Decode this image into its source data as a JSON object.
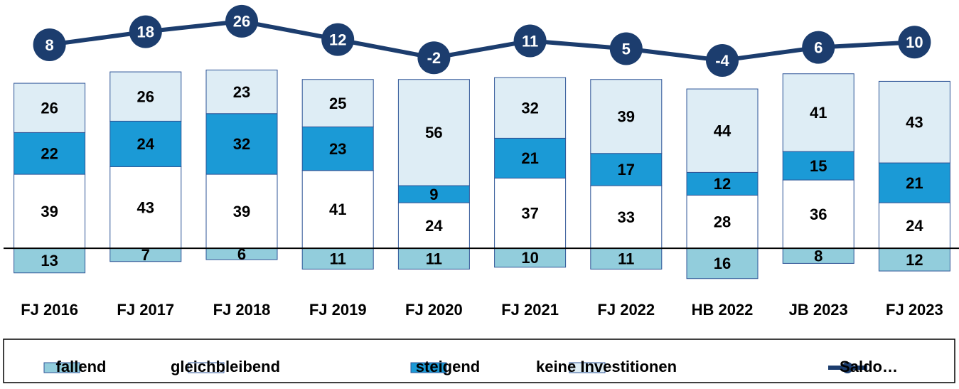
{
  "chart_data": {
    "type": "bar",
    "categories": [
      "FJ 2016",
      "FJ 2017",
      "FJ 2018",
      "FJ 2019",
      "FJ 2020",
      "FJ 2021",
      "FJ 2022",
      "HB 2022",
      "JB 2023",
      "FJ 2023"
    ],
    "series": [
      {
        "name": "fallend",
        "color": "#92cddc",
        "stack": "below",
        "values": [
          13,
          7,
          6,
          11,
          11,
          10,
          11,
          16,
          8,
          12
        ]
      },
      {
        "name": "gleichbleibend",
        "color": "#ffffff",
        "stack": "above",
        "values": [
          39,
          43,
          39,
          41,
          24,
          37,
          33,
          28,
          36,
          24
        ]
      },
      {
        "name": "steigend",
        "color": "#1b9ad6",
        "stack": "above",
        "values": [
          22,
          24,
          32,
          23,
          9,
          21,
          17,
          12,
          15,
          21
        ]
      },
      {
        "name": "keine Investitionen",
        "color": "#deedf5",
        "stack": "above",
        "values": [
          26,
          26,
          23,
          25,
          56,
          32,
          39,
          44,
          41,
          43
        ]
      },
      {
        "name": "Saldo…",
        "color": "#1c3d6e",
        "type": "line",
        "axis": "y2",
        "values": [
          8,
          18,
          26,
          12,
          -2,
          11,
          5,
          -4,
          6,
          10
        ]
      }
    ],
    "ylim": [
      -20,
      130
    ],
    "y2lim": [
      -177,
      41
    ],
    "legend": "bottom"
  }
}
